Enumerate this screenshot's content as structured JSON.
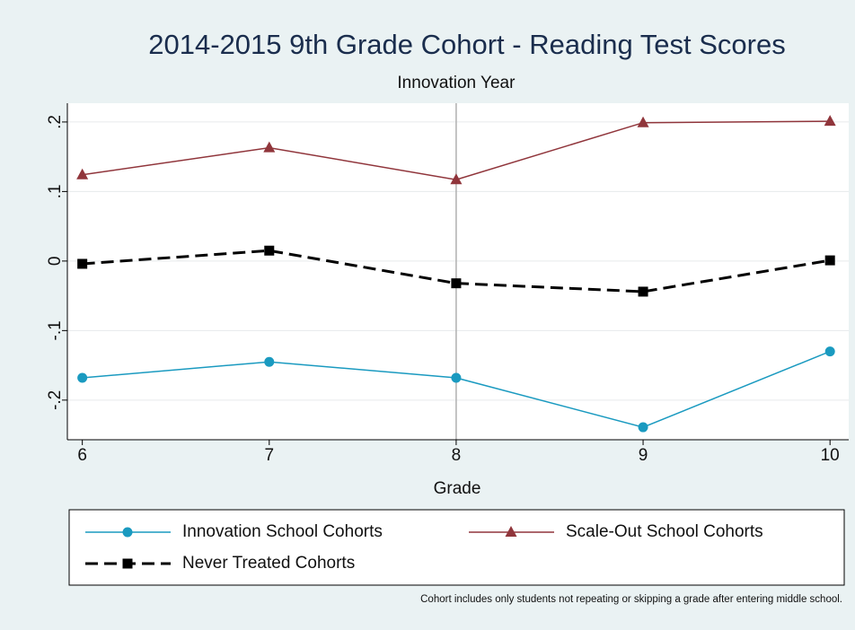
{
  "chart_data": {
    "type": "line",
    "title": "2014-2015 9th Grade Cohort - Reading Test Scores",
    "xlabel": "Grade",
    "note": "Cohort includes only students not repeating or skipping a grade after entering middle school.",
    "annotations": [
      {
        "text": "Innovation Year",
        "x": 8
      }
    ],
    "x": [
      6,
      7,
      8,
      9,
      10
    ],
    "xlim": [
      5.92,
      10.1
    ],
    "xticks": [
      6,
      7,
      8,
      9,
      10
    ],
    "ylim": [
      -0.257,
      0.227
    ],
    "yticks": [
      {
        "value": -0.2,
        "label": "-.2"
      },
      {
        "value": -0.1,
        "label": "-.1"
      },
      0,
      {
        "value": 0.1,
        "label": ".1"
      },
      {
        "value": 0.2,
        "label": ".2"
      }
    ],
    "grid": true,
    "series": [
      {
        "name": "Innovation School Cohorts",
        "color": "#1a9ac0",
        "marker": "circle",
        "dash": false,
        "values": [
          -0.168,
          -0.145,
          -0.168,
          -0.239,
          -0.13
        ]
      },
      {
        "name": "Scale-Out School Cohorts",
        "color": "#90353b",
        "marker": "triangle",
        "dash": false,
        "values": [
          0.124,
          0.163,
          0.117,
          0.199,
          0.201
        ]
      },
      {
        "name": "Never Treated Cohorts",
        "color": "#000000",
        "marker": "square",
        "dash": true,
        "values": [
          -0.004,
          0.015,
          -0.032,
          -0.044,
          0.001
        ]
      }
    ]
  }
}
